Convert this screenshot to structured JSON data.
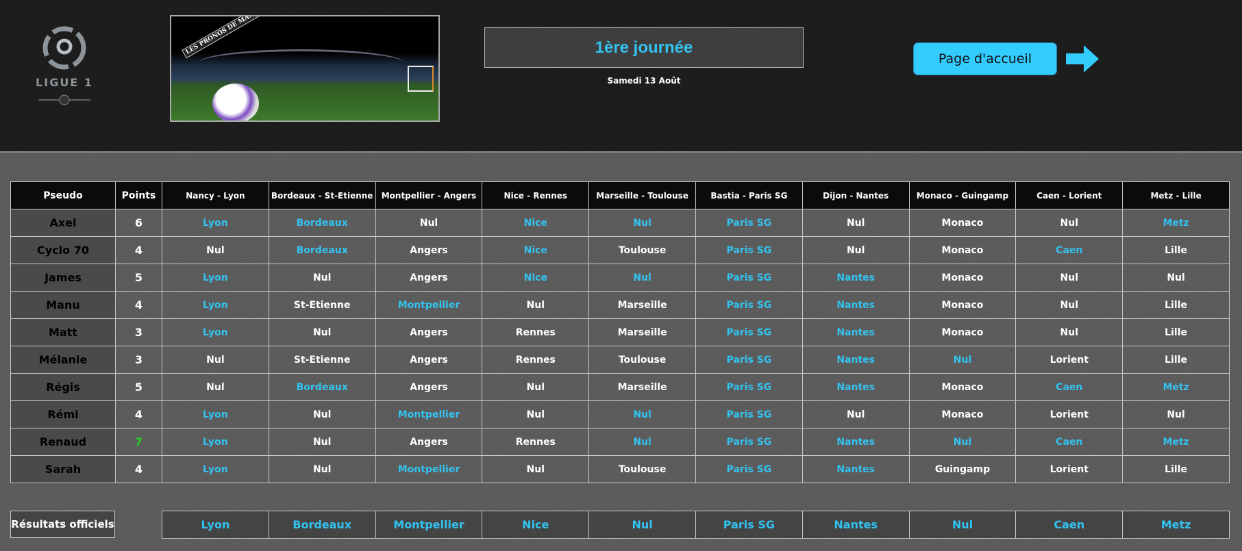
{
  "header": {
    "logo_text": "LIGUE 1",
    "banner_text": "LES PRONOS DE MANU",
    "title": "1ère journée",
    "date": "Samedi 13 Août",
    "home_button": "Page d'accueil"
  },
  "colors": {
    "accent": "#33c3f0",
    "default": "#ffffff",
    "highlight": "#22cc22"
  },
  "table": {
    "headers": [
      "Pseudo",
      "Points",
      "Nancy - Lyon",
      "Bordeaux - St-Etienne",
      "Montpellier - Angers",
      "Nice - Rennes",
      "Marseille - Toulouse",
      "Bastia - Paris SG",
      "Dijon - Nantes",
      "Monaco - Guingamp",
      "Caen - Lorient",
      "Metz - Lille"
    ],
    "rows": [
      {
        "pseudo": "Axel",
        "points": "6",
        "picks": [
          "Lyon",
          "Bordeaux",
          "Nul",
          "Nice",
          "Nul",
          "Paris SG",
          "Nul",
          "Monaco",
          "Nul",
          "Metz"
        ]
      },
      {
        "pseudo": "Cyclo 70",
        "points": "4",
        "picks": [
          "Nul",
          "Bordeaux",
          "Angers",
          "Nice",
          "Toulouse",
          "Paris SG",
          "Nul",
          "Monaco",
          "Caen",
          "Lille"
        ]
      },
      {
        "pseudo": "James",
        "points": "5",
        "picks": [
          "Lyon",
          "Nul",
          "Angers",
          "Nice",
          "Nul",
          "Paris SG",
          "Nantes",
          "Monaco",
          "Nul",
          "Nul"
        ]
      },
      {
        "pseudo": "Manu",
        "points": "4",
        "picks": [
          "Lyon",
          "St-Etienne",
          "Montpellier",
          "Nul",
          "Marseille",
          "Paris SG",
          "Nantes",
          "Monaco",
          "Nul",
          "Lille"
        ]
      },
      {
        "pseudo": "Matt",
        "points": "3",
        "picks": [
          "Lyon",
          "Nul",
          "Angers",
          "Rennes",
          "Marseille",
          "Paris SG",
          "Nantes",
          "Monaco",
          "Nul",
          "Lille"
        ]
      },
      {
        "pseudo": "Mélanie",
        "points": "3",
        "picks": [
          "Nul",
          "St-Etienne",
          "Angers",
          "Rennes",
          "Toulouse",
          "Paris SG",
          "Nantes",
          "Nul",
          "Lorient",
          "Lille"
        ]
      },
      {
        "pseudo": "Régis",
        "points": "5",
        "picks": [
          "Nul",
          "Bordeaux",
          "Angers",
          "Nul",
          "Marseille",
          "Paris SG",
          "Nantes",
          "Monaco",
          "Caen",
          "Metz"
        ]
      },
      {
        "pseudo": "Rémi",
        "points": "4",
        "picks": [
          "Lyon",
          "Nul",
          "Montpellier",
          "Nul",
          "Nul",
          "Paris SG",
          "Nul",
          "Monaco",
          "Lorient",
          "Nul"
        ]
      },
      {
        "pseudo": "Renaud",
        "points": "7",
        "points_highlight": true,
        "picks": [
          "Lyon",
          "Nul",
          "Angers",
          "Rennes",
          "Nul",
          "Paris SG",
          "Nantes",
          "Nul",
          "Caen",
          "Metz"
        ]
      },
      {
        "pseudo": "Sarah",
        "points": "4",
        "picks": [
          "Lyon",
          "Nul",
          "Montpellier",
          "Nul",
          "Toulouse",
          "Paris SG",
          "Nantes",
          "Guingamp",
          "Lorient",
          "Lille"
        ]
      }
    ]
  },
  "official": {
    "label": "Résultats officiels",
    "results": [
      "Lyon",
      "Bordeaux",
      "Montpellier",
      "Nice",
      "Nul",
      "Paris SG",
      "Nantes",
      "Nul",
      "Caen",
      "Metz"
    ]
  }
}
